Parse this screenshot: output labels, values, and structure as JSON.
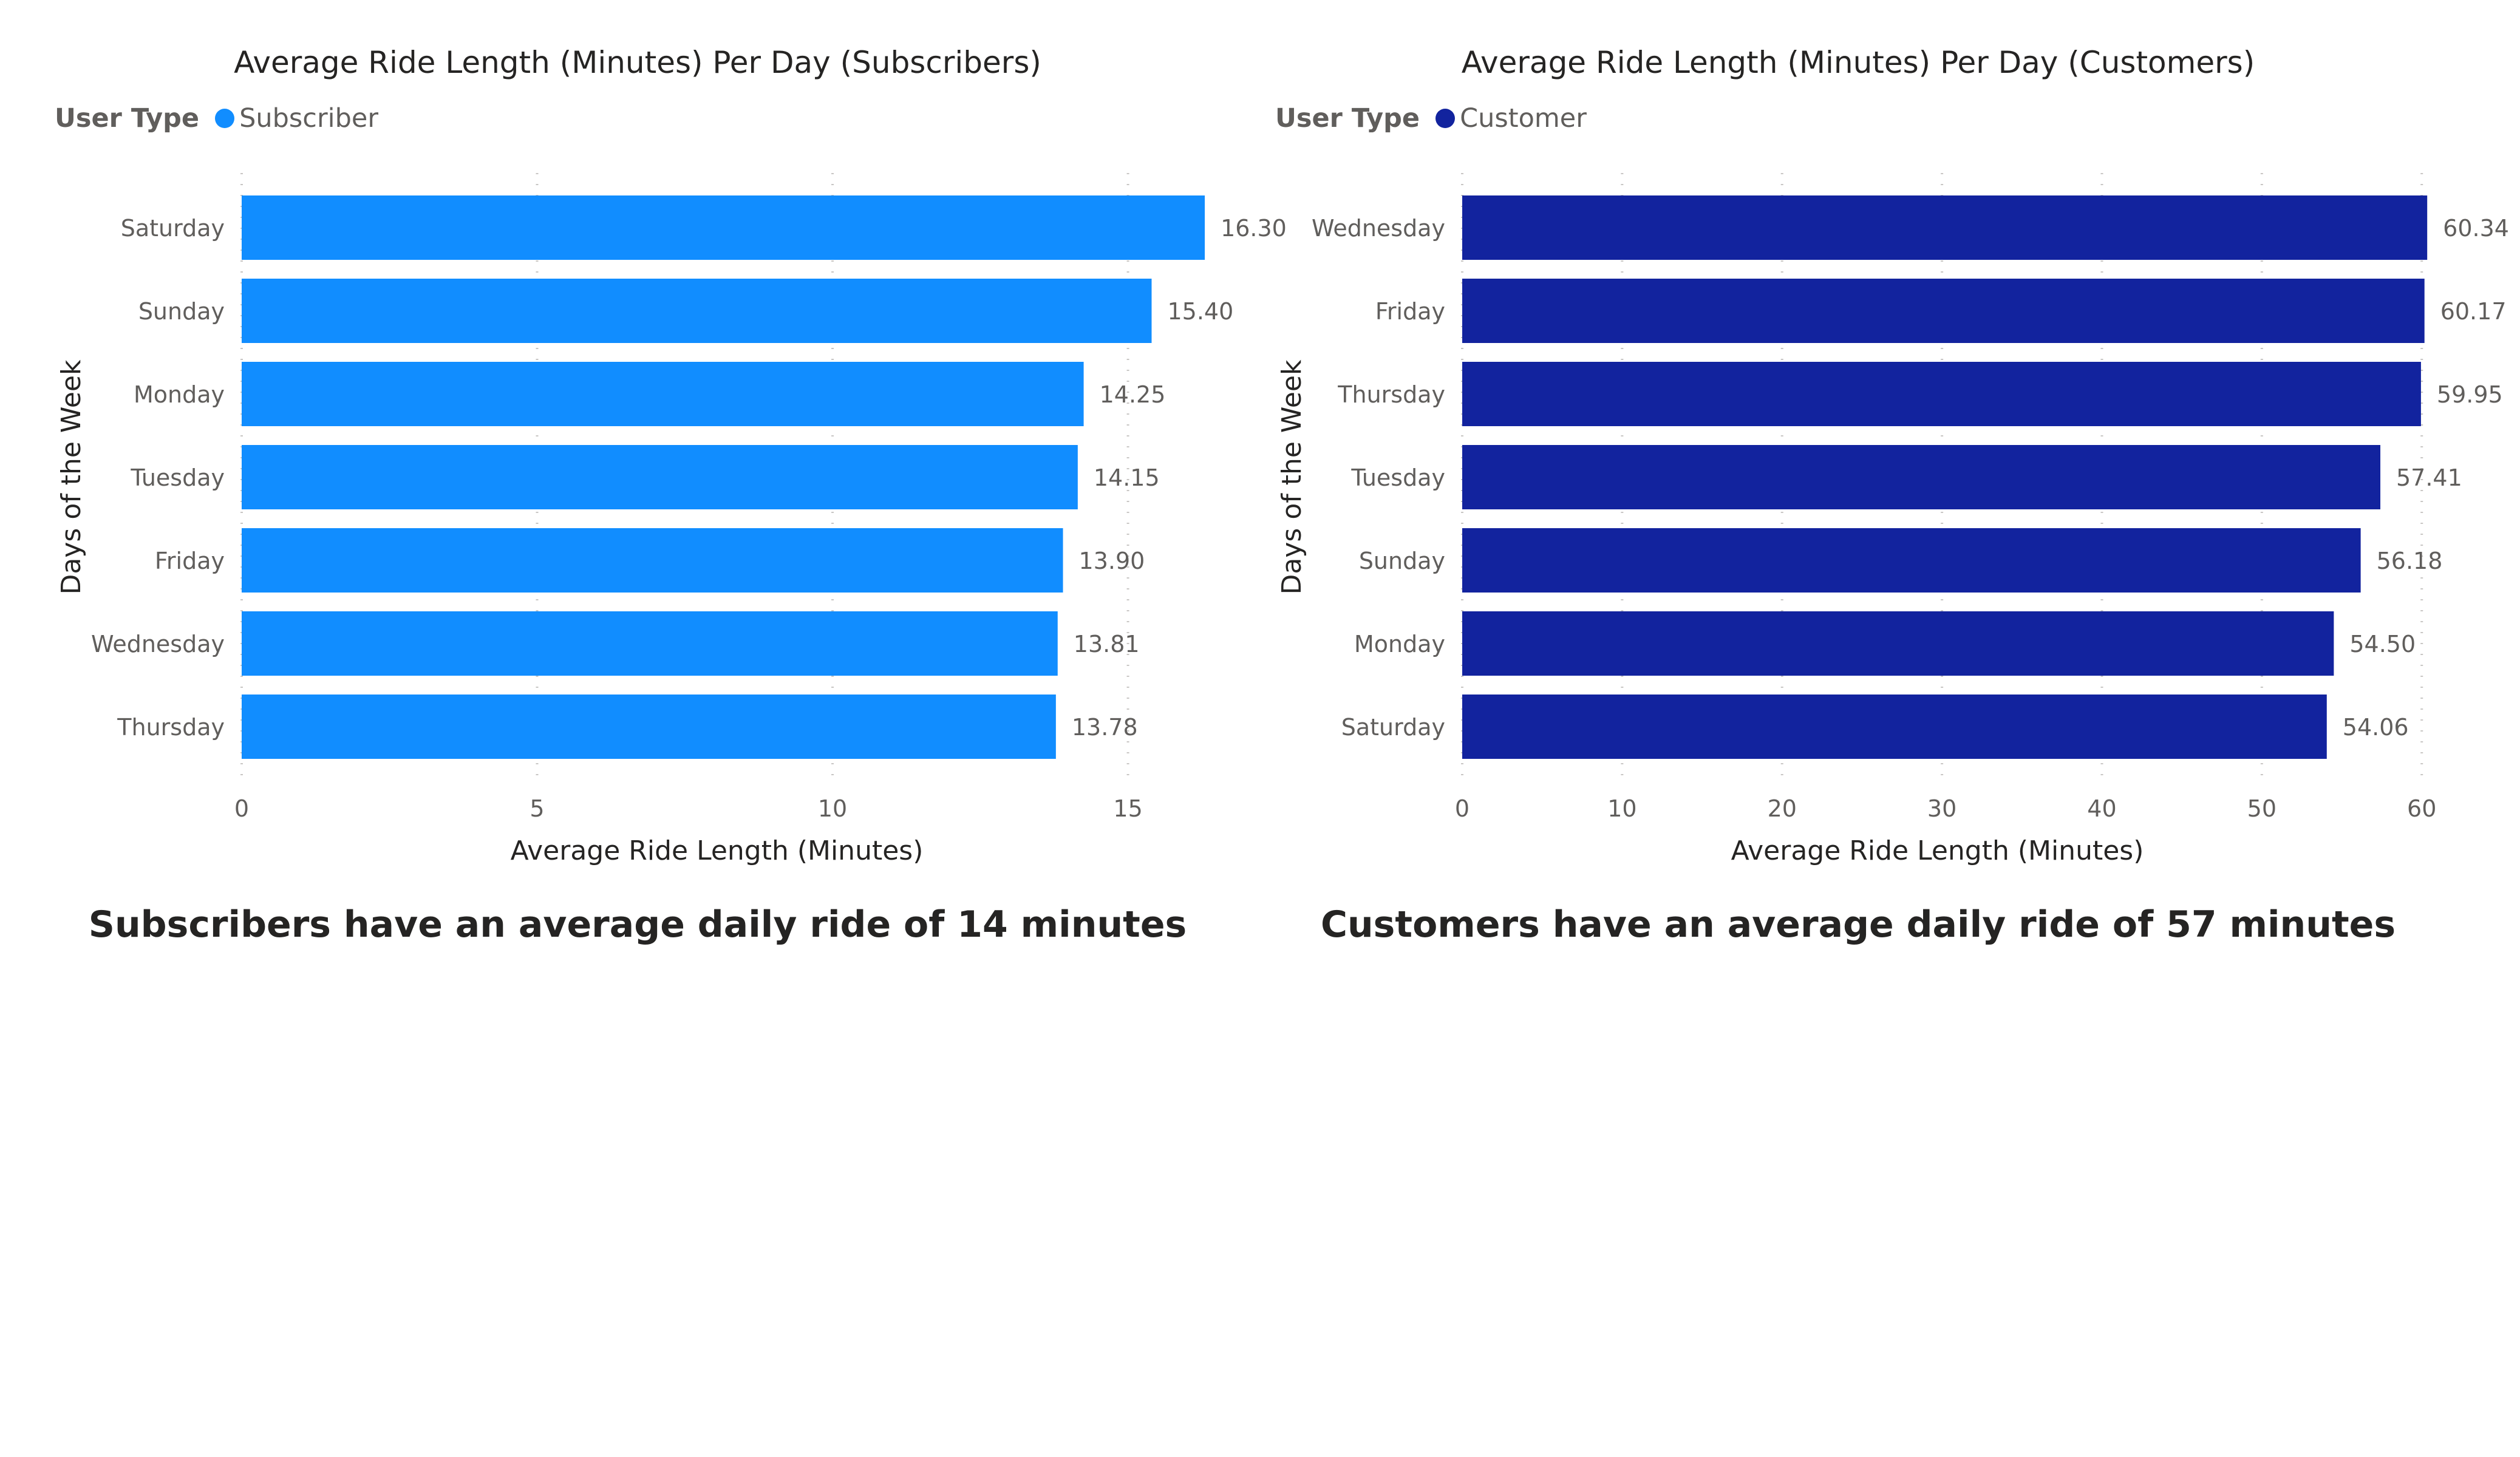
{
  "charts": [
    {
      "title": "Average Ride Length (Minutes) Per Day (Subscribers)",
      "legend": {
        "title": "User Type",
        "label": "Subscriber"
      },
      "summary": "Subscribers have an average daily ride of 14 minutes",
      "color": "#118DFF"
    },
    {
      "title": "Average Ride Length (Minutes) Per Day (Customers)",
      "legend": {
        "title": "User Type",
        "label": "Customer"
      },
      "summary": "Customers have an average daily ride of 57 minutes",
      "color": "#12239E"
    }
  ],
  "chart_data": [
    {
      "type": "bar",
      "orientation": "horizontal",
      "title": "Average Ride Length (Minutes) Per Day (Subscribers)",
      "xlabel": "Average Ride Length (Minutes)",
      "ylabel": "Days of the Week",
      "legend": {
        "title": "User Type",
        "entries": [
          "Subscriber"
        ],
        "placement": "top-left"
      },
      "categories": [
        "Saturday",
        "Sunday",
        "Monday",
        "Tuesday",
        "Friday",
        "Wednesday",
        "Thursday"
      ],
      "series": [
        {
          "name": "Subscriber",
          "color": "#118DFF",
          "values": [
            16.3,
            15.4,
            14.25,
            14.15,
            13.9,
            13.81,
            13.78
          ]
        }
      ],
      "data_labels": [
        "16.30",
        "15.40",
        "14.25",
        "14.15",
        "13.90",
        "13.81",
        "13.78"
      ],
      "xlim": [
        0,
        16.7
      ],
      "xticks": [
        0,
        5,
        10,
        15
      ],
      "grid": "vertical-dotted"
    },
    {
      "type": "bar",
      "orientation": "horizontal",
      "title": "Average Ride Length (Minutes) Per Day (Customers)",
      "xlabel": "Average Ride Length (Minutes)",
      "ylabel": "Days of the Week",
      "legend": {
        "title": "User Type",
        "entries": [
          "Customer"
        ],
        "placement": "top-left"
      },
      "categories": [
        "Wednesday",
        "Friday",
        "Thursday",
        "Tuesday",
        "Sunday",
        "Monday",
        "Saturday"
      ],
      "series": [
        {
          "name": "Customer",
          "color": "#12239E",
          "values": [
            60.34,
            60.17,
            59.95,
            57.41,
            56.18,
            54.5,
            54.06
          ]
        }
      ],
      "data_labels": [
        "60.34",
        "60.17",
        "59.95",
        "57.41",
        "56.18",
        "54.50",
        "54.06"
      ],
      "xlim": [
        0,
        61.7
      ],
      "xticks": [
        0,
        10,
        20,
        30,
        40,
        50,
        60
      ],
      "grid": "vertical-dotted"
    }
  ]
}
